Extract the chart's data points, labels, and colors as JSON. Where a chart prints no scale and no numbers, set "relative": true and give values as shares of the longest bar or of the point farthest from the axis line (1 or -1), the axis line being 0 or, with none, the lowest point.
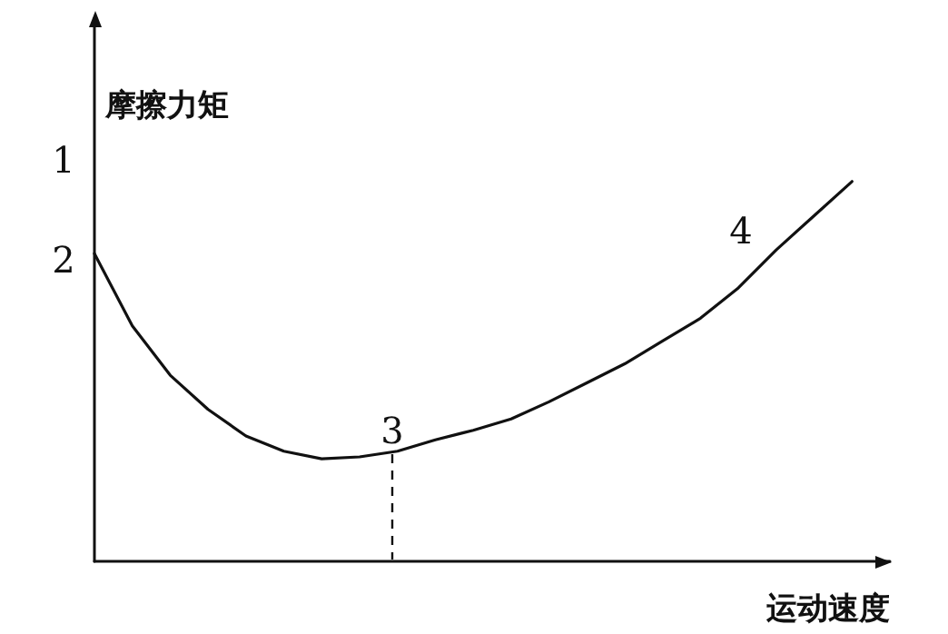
{
  "chart_data": {
    "type": "line",
    "xlabel": "运动速度",
    "ylabel": "摩擦力矩",
    "relative": true,
    "marker": "none",
    "line_style": "solid",
    "categories": [
      null,
      null,
      null,
      null,
      null,
      null,
      null,
      null,
      null,
      null,
      null,
      null,
      null,
      null,
      null,
      null,
      null,
      null,
      null,
      null,
      null,
      null
    ],
    "series": [
      {
        "color": "#111111",
        "values": [
          0.81,
          0.62,
          0.49,
          0.4,
          0.33,
          0.29,
          0.27,
          0.275,
          0.29,
          0.32,
          0.345,
          0.375,
          0.42,
          0.47,
          0.52,
          0.58,
          0.64,
          0.72,
          0.82,
          0.91,
          1.0,
          null
        ]
      }
    ],
    "annotations": [
      "1",
      "2",
      "3",
      "4"
    ]
  }
}
